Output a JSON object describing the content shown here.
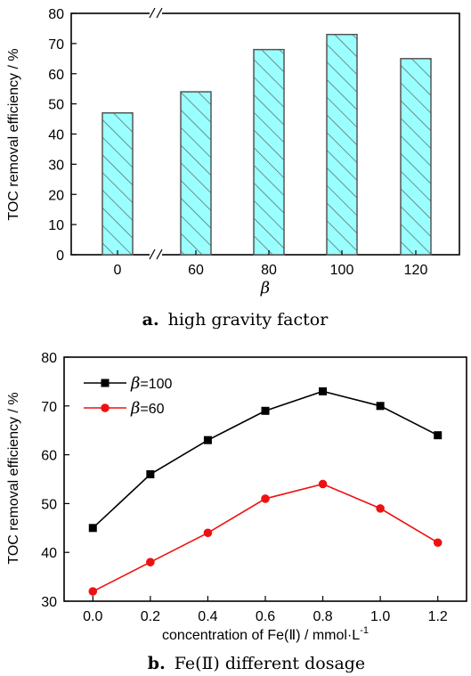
{
  "chart_data": [
    {
      "type": "bar",
      "categories": [
        "0",
        "60",
        "80",
        "100",
        "120"
      ],
      "values": [
        47,
        54,
        68,
        73,
        65
      ],
      "xlabel": "β",
      "ylabel": "TOC removal efficiency / %",
      "ylim": [
        0,
        80
      ],
      "yticks": [
        "0",
        "10",
        "20",
        "30",
        "40",
        "50",
        "60",
        "70",
        "80"
      ],
      "caption_letter": "a.",
      "caption_text": "high gravity factor",
      "axis_break": true,
      "bar_color": "#99ffff",
      "bar_stroke": "#555555"
    },
    {
      "type": "line",
      "x": [
        0.0,
        0.2,
        0.4,
        0.6,
        0.8,
        1.0,
        1.2
      ],
      "xticks": [
        "0.0",
        "0.2",
        "0.4",
        "0.6",
        "0.8",
        "1.0",
        "1.2"
      ],
      "yticks": [
        "30",
        "40",
        "50",
        "60",
        "70",
        "80"
      ],
      "ylim": [
        30,
        80
      ],
      "xlim": [
        -0.1,
        1.3
      ],
      "series": [
        {
          "name": "=100",
          "legend_symbol": "β",
          "color": "#000000",
          "marker": "square",
          "values": [
            45,
            56,
            63,
            69,
            73,
            70,
            64
          ]
        },
        {
          "name": "=60",
          "legend_symbol": "β",
          "color": "#ee1111",
          "marker": "circle",
          "values": [
            32,
            38,
            44,
            51,
            54,
            49,
            42
          ]
        }
      ],
      "xlabel_main": "concentration of Fe(Ⅱ) / mmol·L",
      "xlabel_sup": "-1",
      "ylabel": "TOC removal efficiency / %",
      "legend_position": "top-left",
      "caption_letter": "b.",
      "caption_text": "Fe(Ⅱ) different dosage"
    }
  ]
}
